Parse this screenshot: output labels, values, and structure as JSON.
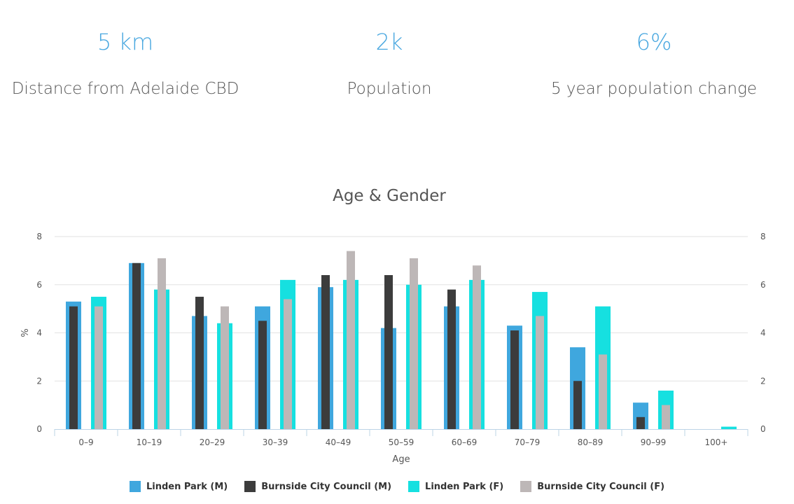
{
  "stats": [
    {
      "value": "5 km",
      "label": "Distance from Adelaide CBD"
    },
    {
      "value": "2k",
      "label": "Population"
    },
    {
      "value": "6%",
      "label": "5 year population change"
    }
  ],
  "colors": {
    "stat_value": "#4aa8e0",
    "series": [
      "#3fa7de",
      "#3c3c3c",
      "#16e0e0",
      "#bdb7b7"
    ],
    "grid": "#e2e2e2",
    "axis": "#bcd4e6"
  },
  "chart_data": {
    "type": "bar",
    "title": "Age & Gender",
    "xlabel": "Age",
    "ylabel": "%",
    "ylim": [
      0,
      8
    ],
    "yticks": [
      "0",
      "2",
      "4",
      "6",
      "8"
    ],
    "categories": [
      "0–9",
      "10–19",
      "20–29",
      "30–39",
      "40–49",
      "50–59",
      "60–69",
      "70–79",
      "80–89",
      "90–99",
      "100+"
    ],
    "series": [
      {
        "name": "Linden Park (M)",
        "values": [
          5.3,
          6.9,
          4.7,
          5.1,
          5.9,
          4.2,
          5.1,
          4.3,
          3.4,
          1.1,
          0
        ]
      },
      {
        "name": "Burnside City Council (M)",
        "values": [
          5.1,
          6.9,
          5.5,
          4.5,
          6.4,
          6.4,
          5.8,
          4.1,
          2.0,
          0.5,
          0
        ]
      },
      {
        "name": "Linden Park (F)",
        "values": [
          5.5,
          5.8,
          4.4,
          6.2,
          6.2,
          6.0,
          6.2,
          5.7,
          5.1,
          1.6,
          0.1
        ]
      },
      {
        "name": "Burnside City Council (F)",
        "values": [
          5.1,
          7.1,
          5.1,
          5.4,
          7.4,
          7.1,
          6.8,
          4.7,
          3.1,
          1.0,
          0
        ]
      }
    ],
    "legend_position": "bottom"
  }
}
